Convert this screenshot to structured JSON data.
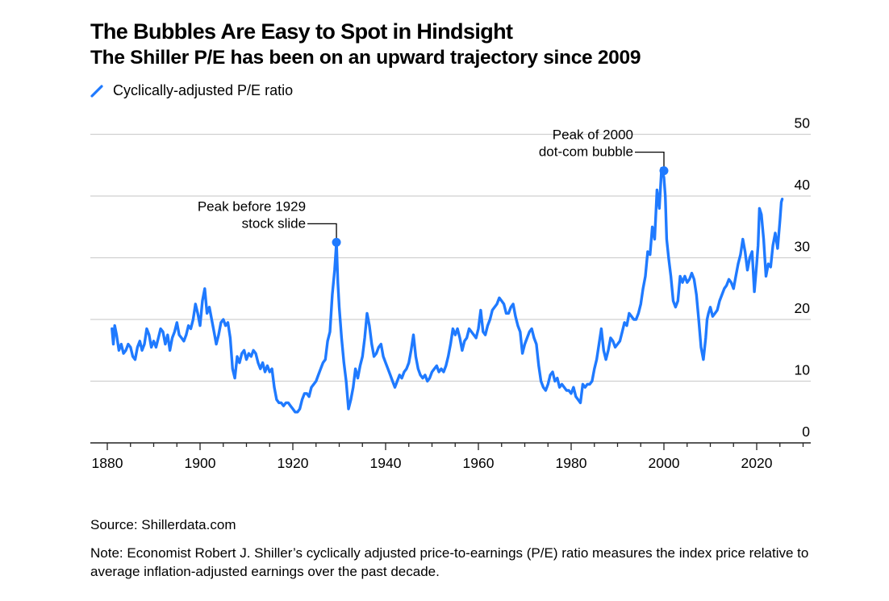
{
  "header": {
    "title": "The Bubbles Are Easy to Spot in Hindsight",
    "subtitle": "The Shiller P/E has been on an upward trajectory since 2009"
  },
  "legend": {
    "label": "Cyclically-adjusted P/E ratio",
    "color": "#1f7aff"
  },
  "footer": {
    "source": "Source: Shillerdata.com",
    "note": "Note: Economist Robert J. Shiller’s cyclically adjusted price-to-earnings (P/E) ratio measures the index price relative to average inflation-adjusted earnings over the past decade."
  },
  "chart_data": {
    "type": "line",
    "title": "The Bubbles Are Easy to Spot in Hindsight",
    "subtitle": "The Shiller P/E has been on an upward trajectory since 2009",
    "xlabel": "",
    "ylabel": "",
    "xlim": [
      1876,
      2030
    ],
    "ylim": [
      0,
      50
    ],
    "x_ticks": [
      1880,
      1900,
      1920,
      1940,
      1960,
      1980,
      2000,
      2020
    ],
    "x_minor_tick_step": 5,
    "y_ticks": [
      0,
      10,
      20,
      30,
      40,
      50
    ],
    "y_axis_side": "right",
    "grid": true,
    "legend_position": "top-left",
    "series": [
      {
        "name": "Cyclically-adjusted P/E ratio",
        "color": "#1f7aff",
        "x": [
          1881,
          1881.3,
          1881.6,
          1882,
          1882.5,
          1883,
          1883.5,
          1884,
          1884.5,
          1885,
          1885.5,
          1886,
          1886.5,
          1887,
          1887.5,
          1888,
          1888.5,
          1889,
          1889.5,
          1890,
          1890.5,
          1891,
          1891.5,
          1892,
          1892.5,
          1893,
          1893.5,
          1894,
          1894.5,
          1895,
          1895.5,
          1896,
          1896.5,
          1897,
          1897.5,
          1898,
          1898.5,
          1899,
          1899.5,
          1900,
          1900.5,
          1901,
          1901.5,
          1902,
          1902.5,
          1903,
          1903.5,
          1904,
          1904.5,
          1905,
          1905.5,
          1906,
          1906.5,
          1907,
          1907.5,
          1908,
          1908.5,
          1909,
          1909.5,
          1910,
          1910.5,
          1911,
          1911.5,
          1912,
          1912.5,
          1913,
          1913.5,
          1914,
          1914.5,
          1915,
          1915.5,
          1916,
          1916.5,
          1917,
          1917.5,
          1918,
          1918.5,
          1919,
          1919.5,
          1920,
          1920.5,
          1921,
          1921.5,
          1922,
          1922.5,
          1923,
          1923.5,
          1924,
          1924.5,
          1925,
          1925.5,
          1926,
          1926.5,
          1927,
          1927.5,
          1928,
          1928.5,
          1929,
          1929.4,
          1929.7,
          1930,
          1930.5,
          1931,
          1931.5,
          1932,
          1932.5,
          1933,
          1933.5,
          1934,
          1934.5,
          1935,
          1935.5,
          1936,
          1936.5,
          1937,
          1937.5,
          1938,
          1938.5,
          1939,
          1939.5,
          1940,
          1940.5,
          1941,
          1941.5,
          1942,
          1942.5,
          1943,
          1943.5,
          1944,
          1944.5,
          1945,
          1945.5,
          1946,
          1946.5,
          1947,
          1947.5,
          1948,
          1948.5,
          1949,
          1949.5,
          1950,
          1950.5,
          1951,
          1951.5,
          1952,
          1952.5,
          1953,
          1953.5,
          1954,
          1954.5,
          1955,
          1955.5,
          1956,
          1956.5,
          1957,
          1957.5,
          1958,
          1958.5,
          1959,
          1959.5,
          1960,
          1960.5,
          1961,
          1961.5,
          1962,
          1962.5,
          1963,
          1963.5,
          1964,
          1964.5,
          1965,
          1965.5,
          1966,
          1966.5,
          1967,
          1967.5,
          1968,
          1968.5,
          1969,
          1969.5,
          1970,
          1970.5,
          1971,
          1971.5,
          1972,
          1972.5,
          1973,
          1973.5,
          1974,
          1974.5,
          1975,
          1975.5,
          1976,
          1976.5,
          1977,
          1977.5,
          1978,
          1978.5,
          1979,
          1979.5,
          1980,
          1980.5,
          1981,
          1981.5,
          1982,
          1982.5,
          1983,
          1983.5,
          1984,
          1984.5,
          1985,
          1985.5,
          1986,
          1986.5,
          1987,
          1987.5,
          1988,
          1988.5,
          1989,
          1989.5,
          1990,
          1990.5,
          1991,
          1991.5,
          1992,
          1992.5,
          1993,
          1993.5,
          1994,
          1994.5,
          1995,
          1995.5,
          1996,
          1996.5,
          1997,
          1997.5,
          1998,
          1998.5,
          1999,
          1999.5,
          2000,
          2000.3,
          2000.6,
          2001,
          2001.5,
          2002,
          2002.5,
          2003,
          2003.5,
          2004,
          2004.5,
          2005,
          2005.5,
          2006,
          2006.5,
          2007,
          2007.5,
          2008,
          2008.5,
          2009,
          2009.3,
          2009.6,
          2010,
          2010.5,
          2011,
          2011.5,
          2012,
          2012.5,
          2013,
          2013.5,
          2014,
          2014.5,
          2015,
          2015.5,
          2016,
          2016.5,
          2017,
          2017.5,
          2018,
          2018.5,
          2019,
          2019.5,
          2020,
          2020.3,
          2020.6,
          2021,
          2021.5,
          2022,
          2022.5,
          2023,
          2023.5,
          2024,
          2024.5,
          2025,
          2025.3,
          2025.5
        ],
        "values": [
          18.5,
          16,
          19,
          17.5,
          15,
          16,
          14.5,
          15,
          16,
          15.5,
          14,
          13.5,
          15.5,
          16.5,
          15,
          16,
          18.5,
          17.5,
          15.5,
          16.5,
          15.5,
          17,
          18.5,
          18,
          16,
          17.5,
          15,
          17,
          18,
          19.5,
          17.5,
          17,
          16.5,
          17.5,
          19,
          18.5,
          20,
          22.5,
          21,
          19,
          23,
          25,
          21,
          22,
          20,
          18,
          16,
          17.5,
          19.5,
          20,
          19,
          19.5,
          17,
          12,
          10.5,
          14,
          13,
          14.5,
          15,
          13.5,
          14.5,
          14,
          15,
          14.5,
          13,
          12,
          13,
          11.5,
          12.5,
          11.5,
          12,
          9,
          7,
          6.5,
          6.5,
          6,
          6.5,
          6.5,
          6,
          5.5,
          5,
          5,
          5.5,
          7,
          8,
          8,
          7.5,
          9,
          9.5,
          10,
          11,
          12,
          13,
          13.5,
          16.5,
          18,
          24,
          28,
          32.5,
          26,
          22,
          17,
          13,
          10,
          5.5,
          7,
          9,
          12,
          10.5,
          12.5,
          14,
          17,
          21,
          19,
          16,
          14,
          14.5,
          15.5,
          16,
          14,
          13,
          12,
          11,
          10,
          9,
          10,
          11,
          10.5,
          11.5,
          12,
          13,
          15,
          17.5,
          14,
          12,
          11,
          10.5,
          11,
          10,
          10.5,
          11.5,
          12,
          12.5,
          11.5,
          12,
          11.5,
          12.5,
          14,
          16,
          18.5,
          17.5,
          18.5,
          17,
          15,
          16.5,
          17,
          18.5,
          18,
          17.5,
          17,
          18.5,
          21.5,
          18,
          17.5,
          19,
          20,
          21.5,
          22,
          22.5,
          23.5,
          23,
          22.5,
          21,
          21,
          22,
          22.5,
          20.5,
          19,
          18,
          14.5,
          16,
          17,
          18,
          18.5,
          17,
          16,
          12.5,
          10,
          9,
          8.5,
          9.5,
          11,
          11.5,
          10,
          10.5,
          9,
          9.5,
          9,
          8.5,
          8.5,
          8,
          9,
          7.5,
          7,
          6.5,
          9.5,
          9,
          9.5,
          9.5,
          10,
          12,
          13.5,
          16,
          18.5,
          15,
          13.5,
          15,
          17,
          16.5,
          15.5,
          16,
          16.5,
          18,
          19.5,
          19,
          21,
          20.5,
          20,
          20,
          21,
          22.5,
          25,
          27,
          31,
          30.5,
          35,
          33,
          41,
          38,
          44.5,
          43,
          40,
          33,
          30,
          27,
          23,
          22,
          23,
          27,
          26,
          27,
          26,
          26.5,
          27.5,
          26.5,
          24,
          20,
          15.5,
          13.5,
          17,
          20,
          21,
          22,
          20.5,
          21,
          21.5,
          23,
          24,
          25,
          25.5,
          26.5,
          26,
          25,
          27,
          29,
          30.5,
          33,
          31,
          28,
          30,
          31,
          24.5,
          29,
          32,
          38,
          37,
          33,
          27,
          29,
          28.5,
          32,
          34,
          31.5,
          36,
          39,
          39.5
        ]
      }
    ],
    "annotations": [
      {
        "text_lines": [
          "Peak before 1929",
          "stock slide"
        ],
        "x": 1929.4,
        "y": 32.5
      },
      {
        "text_lines": [
          "Peak of 2000",
          "dot-com bubble"
        ],
        "x": 2000,
        "y": 44.1
      }
    ]
  }
}
